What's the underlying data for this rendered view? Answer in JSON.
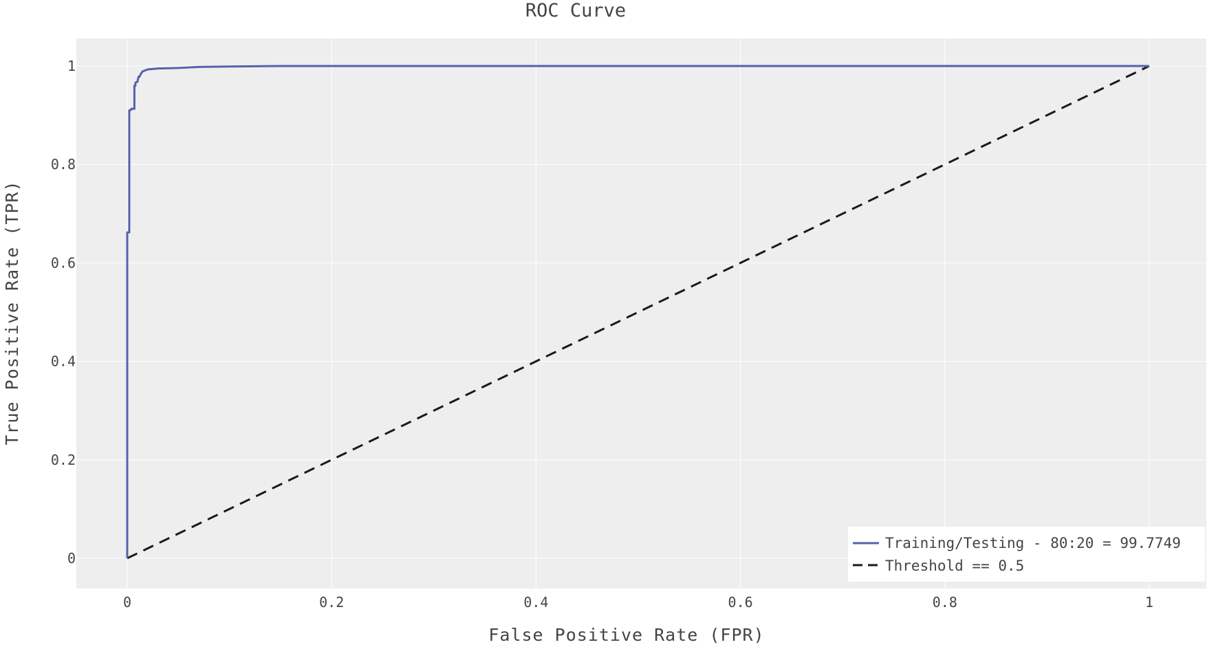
{
  "chart_data": {
    "type": "line",
    "title": "ROC Curve",
    "xlabel": "False Positive Rate (FPR)",
    "ylabel": "True Positive Rate (TPR)",
    "xlim": [
      0,
      1
    ],
    "ylim": [
      0,
      1
    ],
    "xticks": [
      0,
      0.2,
      0.4,
      0.6,
      0.8,
      1
    ],
    "yticks": [
      0,
      0.2,
      0.4,
      0.6,
      0.8,
      1
    ],
    "xtick_labels": [
      "0",
      "0.2",
      "0.4",
      "0.6",
      "0.8",
      "1"
    ],
    "ytick_labels": [
      "0",
      "0.2",
      "0.4",
      "0.6",
      "0.8",
      "1"
    ],
    "grid": true,
    "legend_position": "bottom-right",
    "series": [
      {
        "name": "Training/Testing - 80:20 = 99.7749",
        "color": "#5561ae",
        "style": "solid",
        "x": [
          0,
          0,
          0.002,
          0.002,
          0.003,
          0.004,
          0.004,
          0.007,
          0.007,
          0.008,
          0.008,
          0.01,
          0.011,
          0.012,
          0.013,
          0.015,
          0.02,
          0.03,
          0.05,
          0.07,
          0.1,
          0.15,
          0.2,
          0.3,
          0.5,
          0.8,
          1
        ],
        "y": [
          0,
          0.662,
          0.662,
          0.91,
          0.91,
          0.912,
          0.913,
          0.913,
          0.96,
          0.96,
          0.966,
          0.968,
          0.978,
          0.978,
          0.983,
          0.989,
          0.993,
          0.995,
          0.996,
          0.998,
          0.999,
          1,
          1,
          1,
          1,
          1,
          1
        ]
      },
      {
        "name": "Threshold == 0.5",
        "color": "#1a1a1a",
        "style": "dashed",
        "x": [
          0,
          1
        ],
        "y": [
          0,
          1
        ]
      }
    ]
  }
}
